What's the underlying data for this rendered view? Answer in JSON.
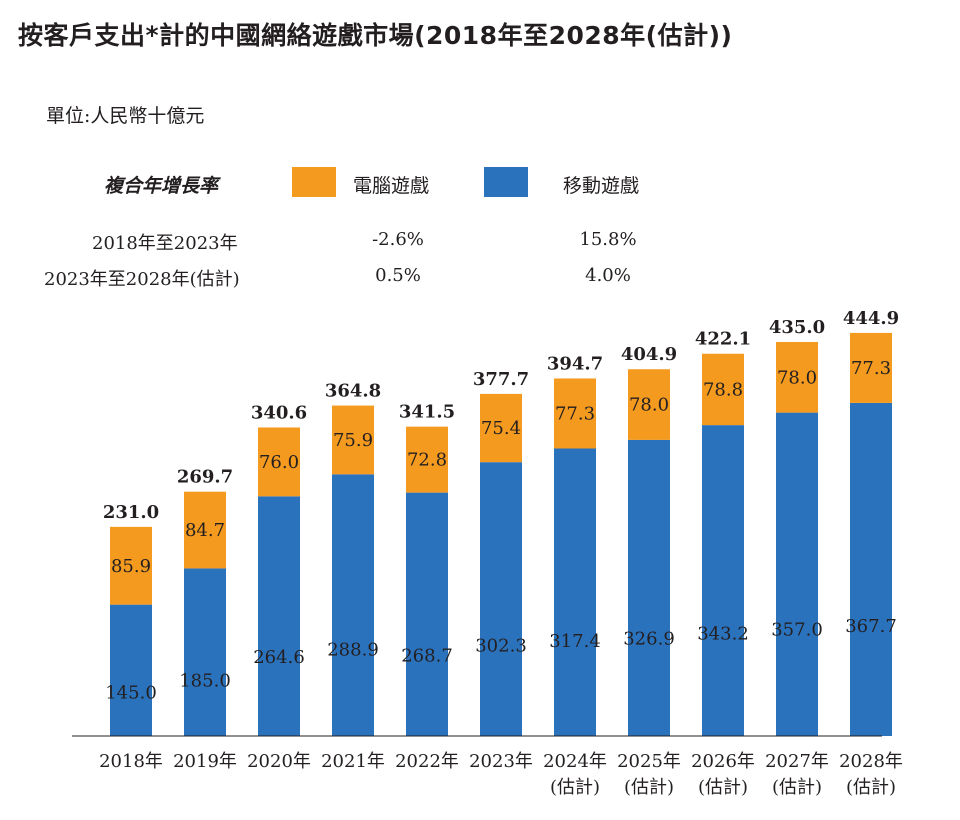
{
  "title": "按客戶支出*計的中國網絡遊戲市場(2018年至2028年(估計))",
  "unit_label": "單位:人民幣十億元",
  "legend": {
    "cagr_header": "複合年增長率",
    "items": [
      {
        "label": "電腦遊戲",
        "color": "#f39a1f"
      },
      {
        "label": "移動遊戲",
        "color": "#2b72bd"
      }
    ]
  },
  "cagr_rows": [
    {
      "period": "2018年至2023年",
      "pc": "-2.6%",
      "mobile": "15.8%"
    },
    {
      "period": "2023年至2028年(估計)",
      "pc": "0.5%",
      "mobile": "4.0%"
    }
  ],
  "chart_data": {
    "type": "bar",
    "stacked": true,
    "title": "按客戶支出*計的中國網絡遊戲市場(2018年至2028年(估計))",
    "ylabel": "單位:人民幣十億元",
    "categories": [
      "2018年",
      "2019年",
      "2020年",
      "2021年",
      "2022年",
      "2023年",
      "2024年",
      "2025年",
      "2026年",
      "2027年",
      "2028年"
    ],
    "category_notes": [
      "",
      "",
      "",
      "",
      "",
      "",
      "(估計)",
      "(估計)",
      "(估計)",
      "(估計)",
      "(估計)"
    ],
    "series": [
      {
        "name": "移動遊戲",
        "color": "#2b72bd",
        "values": [
          145.0,
          185.0,
          264.6,
          288.9,
          268.7,
          302.3,
          317.4,
          326.9,
          343.2,
          357.0,
          367.7
        ]
      },
      {
        "name": "電腦遊戲",
        "color": "#f39a1f",
        "values": [
          85.9,
          84.7,
          76.0,
          75.9,
          72.8,
          75.4,
          77.3,
          78.0,
          78.8,
          78.0,
          77.3
        ]
      }
    ],
    "totals": [
      231.0,
      269.7,
      340.6,
      364.8,
      341.5,
      377.7,
      394.7,
      404.9,
      422.1,
      435.0,
      444.9
    ],
    "ylim": [
      0,
      444.9
    ],
    "grid": false,
    "legend_position": "top"
  }
}
